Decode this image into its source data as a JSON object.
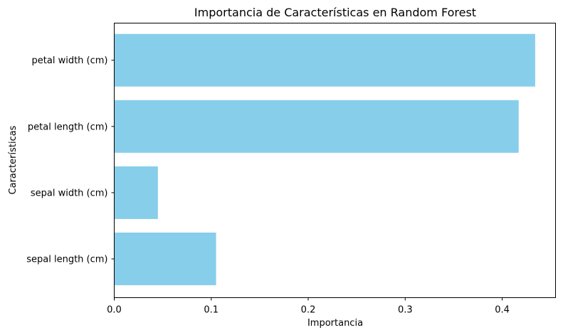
{
  "chart_data": {
    "type": "bar",
    "orientation": "horizontal",
    "title": "Importancia de Características en Random Forest",
    "xlabel": "Importancia",
    "ylabel": "Características",
    "categories": [
      "sepal length (cm)",
      "sepal width (cm)",
      "petal length (cm)",
      "petal width (cm)"
    ],
    "values": [
      0.105,
      0.045,
      0.417,
      0.434
    ],
    "xlim": [
      0,
      0.455
    ],
    "xticks": [
      0.0,
      0.1,
      0.2,
      0.3,
      0.4
    ],
    "xtick_labels": [
      "0.0",
      "0.1",
      "0.2",
      "0.3",
      "0.4"
    ],
    "bar_color": "#87ceeb",
    "grid": false
  }
}
